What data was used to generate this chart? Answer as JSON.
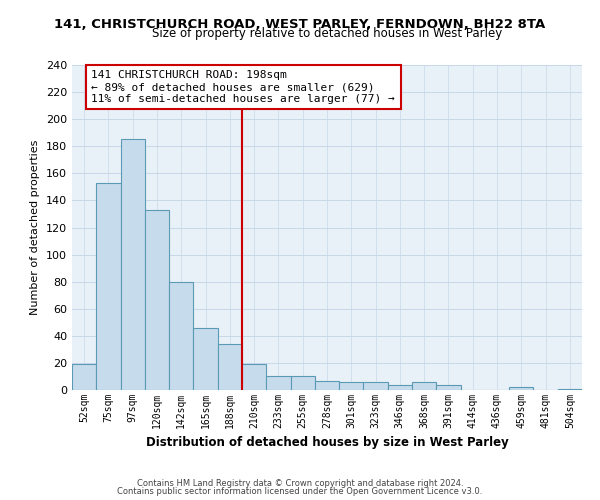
{
  "title_line1": "141, CHRISTCHURCH ROAD, WEST PARLEY, FERNDOWN, BH22 8TA",
  "title_line2": "Size of property relative to detached houses in West Parley",
  "xlabel": "Distribution of detached houses by size in West Parley",
  "ylabel": "Number of detached properties",
  "bin_labels": [
    "52sqm",
    "75sqm",
    "97sqm",
    "120sqm",
    "142sqm",
    "165sqm",
    "188sqm",
    "210sqm",
    "233sqm",
    "255sqm",
    "278sqm",
    "301sqm",
    "323sqm",
    "346sqm",
    "368sqm",
    "391sqm",
    "414sqm",
    "436sqm",
    "459sqm",
    "481sqm",
    "504sqm"
  ],
  "bar_heights": [
    19,
    153,
    185,
    133,
    80,
    46,
    34,
    19,
    10,
    10,
    7,
    6,
    6,
    4,
    6,
    4,
    0,
    0,
    2,
    0,
    1
  ],
  "bar_color": "#c6dcec",
  "bar_edge_color": "#5b9ab5",
  "vline_color": "#cc0000",
  "annotation_line1": "141 CHRISTCHURCH ROAD: 198sqm",
  "annotation_line2": "← 89% of detached houses are smaller (629)",
  "annotation_line3": "11% of semi-detached houses are larger (77) →",
  "annotation_box_color": "#ffffff",
  "annotation_box_edge": "#cc0000",
  "ylim": [
    0,
    240
  ],
  "yticks": [
    0,
    20,
    40,
    60,
    80,
    100,
    120,
    140,
    160,
    180,
    200,
    220,
    240
  ],
  "footer_line1": "Contains HM Land Registry data © Crown copyright and database right 2024.",
  "footer_line2": "Contains public sector information licensed under the Open Government Licence v3.0.",
  "bg_color": "#ffffff",
  "grid_color": "#c8d8e8"
}
